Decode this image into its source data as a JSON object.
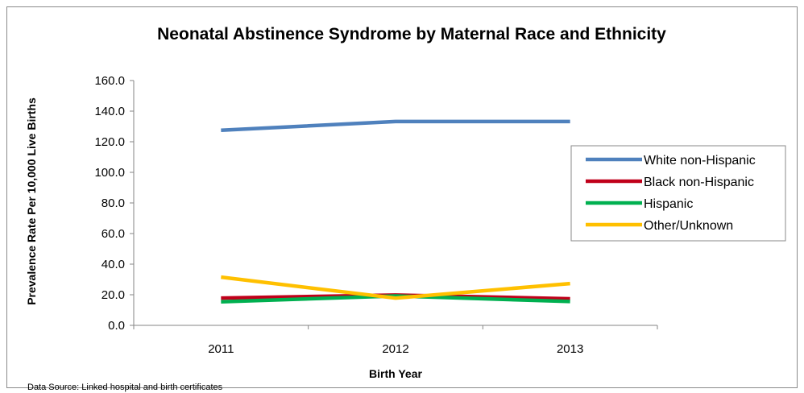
{
  "chart_data": {
    "type": "line",
    "title": "Neonatal Abstinence Syndrome by Maternal Race and Ethnicity",
    "xlabel": "Birth Year",
    "ylabel": "Prevalence Rate Per 10,000 Live Births",
    "categories": [
      "2011",
      "2012",
      "2013"
    ],
    "ylim": [
      0,
      160
    ],
    "yticks": [
      "0.0",
      "20.0",
      "40.0",
      "60.0",
      "80.0",
      "100.0",
      "120.0",
      "140.0",
      "160.0"
    ],
    "grid": false,
    "legend_position": "right",
    "series": [
      {
        "name": "White non-Hispanic",
        "color": "#4f81bd",
        "values": [
          127.5,
          133.2,
          133.2
        ]
      },
      {
        "name": "Black non-Hispanic",
        "color": "#c0001a",
        "values": [
          17.8,
          19.8,
          17.4
        ]
      },
      {
        "name": "Hispanic",
        "color": "#00b050",
        "values": [
          15.4,
          19.2,
          15.6
        ]
      },
      {
        "name": "Other/Unknown",
        "color": "#ffc000",
        "values": [
          31.5,
          17.8,
          27.3
        ]
      }
    ],
    "source": "Data Source: Linked hospital and birth certificates"
  }
}
